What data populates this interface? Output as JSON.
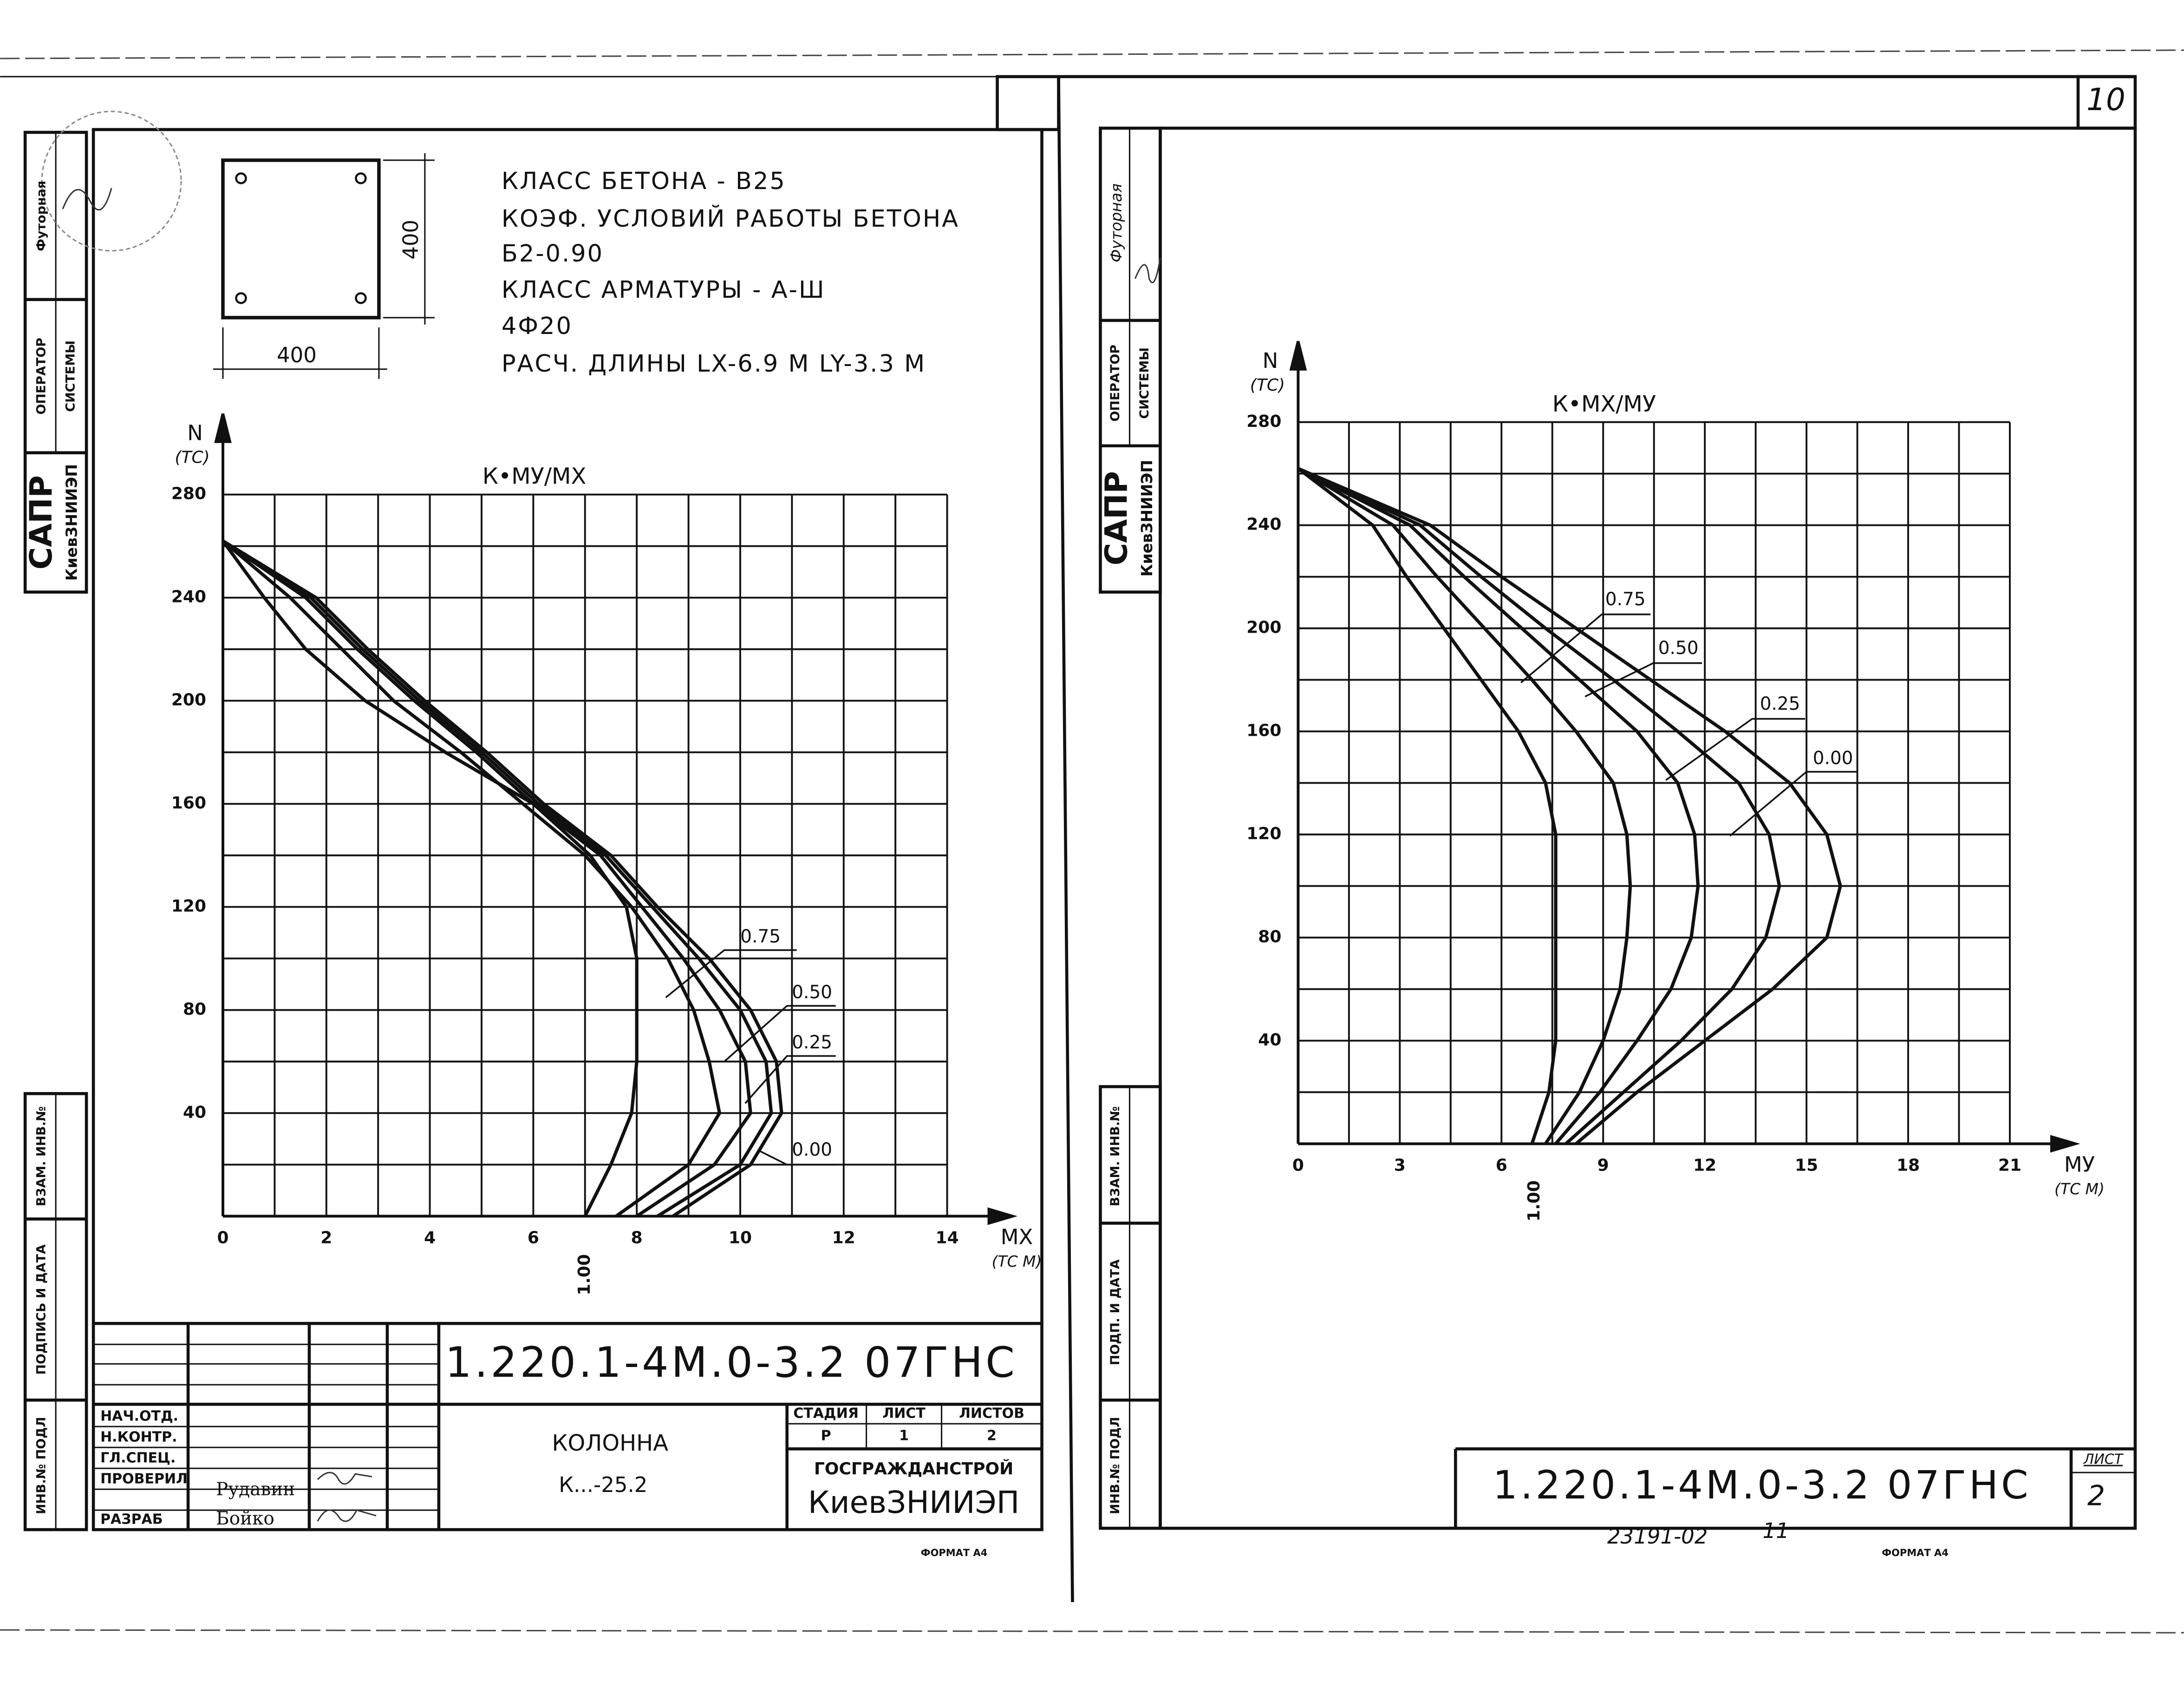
{
  "page_number": "10",
  "left_sheet": {
    "stamps": {
      "rewritten": "Футорная",
      "operator": "ОПЕРАТОР",
      "system": "СИСТЕМЫ",
      "sapr": "САПР",
      "org": "КиевЗНИИЭП",
      "replaced": "ВЗАМ. ИНВ.№",
      "signature": "ПОДПИСЬ И ДАТА",
      "original": "ИНВ.№ ПОДЛ"
    },
    "section": {
      "width": "400",
      "height": "400"
    },
    "specs": [
      "КЛАСС БЕТОНА - В25",
      "КОЭФ. УСЛОВИЙ РАБОТЫ БЕТОНА",
      "Б2-0.90",
      "КЛАСС АРМАТУРЫ - А-Ш",
      "4Ф20",
      "РАСЧ. ДЛИНЫ  LX-6.9 М  LY-3.3 М"
    ],
    "title_block": {
      "code": "1.220.1-4М.0-3.2 07ГНС",
      "roles": [
        "НАЧ.ОТД.",
        "Н.КОНТР.",
        "ГЛ.СПЕЦ.",
        "ПРОВЕРИЛ",
        "РАЗРАБ"
      ],
      "names": [
        "Рудавин",
        "Бойко"
      ],
      "item": "КОЛОННА",
      "mark": "К...-25.2",
      "stage_headers": [
        "СТАДИЯ",
        "ЛИСТ",
        "ЛИСТОВ"
      ],
      "stage_values": [
        "Р",
        "1",
        "2"
      ],
      "authority": "ГОСГРАЖДАНСТРОЙ",
      "org": "КиевЗНИИЭП"
    },
    "format": "ФОРМАТ А4"
  },
  "right_sheet": {
    "stamps": {
      "rewritten": "Футорная",
      "operator": "ОПЕРАТОР",
      "system": "СИСТЕМЫ",
      "sapr": "САПР",
      "org": "КиевЗНИИЭП",
      "replaced": "ВЗАМ. ИНВ.№",
      "signature": "ПОДП. И ДАТА",
      "original": "ИНВ.№ ПОДЛ"
    },
    "title_block": {
      "code": "1.220.1-4М.0-3.2 07ГНС",
      "sheet_header": "ЛИСТ",
      "sheet": "2"
    },
    "archive_number": "23191-02",
    "archive_sheet": "11",
    "format": "ФОРМАТ А4"
  },
  "chart_data": [
    {
      "type": "line",
      "title": "К•МУ/МХ",
      "xlabel": "МХ",
      "xunit": "(ТС М)",
      "ylabel": "N",
      "yunit": "(ТС)",
      "xlim": [
        0,
        14
      ],
      "xticks": [
        0,
        2,
        4,
        6,
        8,
        10,
        12,
        14
      ],
      "x_minor_ticks": [
        1,
        3,
        5,
        7,
        9,
        11,
        13
      ],
      "ylim": [
        0,
        280
      ],
      "yticks": [
        40,
        80,
        120,
        160,
        200,
        240,
        280
      ],
      "y_minor_ticks": [
        20,
        60,
        100,
        140,
        180,
        220,
        260
      ],
      "grid": true,
      "color": "#111111",
      "series": [
        {
          "name": "1.00",
          "x": [
            0,
            0.8,
            1.6,
            2.75,
            4.3,
            6.0,
            7.1,
            7.8,
            8.0,
            8.0,
            8.0,
            7.9,
            7.5,
            7.0
          ],
          "y": [
            262,
            240,
            220,
            200,
            180,
            160,
            140,
            120,
            100,
            80,
            60,
            40,
            20,
            0
          ]
        },
        {
          "name": "0.75",
          "x": [
            0,
            1.3,
            2.3,
            3.3,
            4.6,
            5.8,
            7.0,
            7.9,
            8.6,
            9.1,
            9.4,
            9.6,
            9.0,
            7.6
          ],
          "y": [
            262,
            240,
            220,
            200,
            180,
            160,
            140,
            120,
            100,
            80,
            60,
            40,
            20,
            0
          ]
        },
        {
          "name": "0.50",
          "x": [
            0,
            1.6,
            2.6,
            3.7,
            4.9,
            6.0,
            7.3,
            8.1,
            8.9,
            9.6,
            10.1,
            10.2,
            9.5,
            8.0
          ],
          "y": [
            262,
            240,
            220,
            200,
            180,
            160,
            140,
            120,
            100,
            80,
            60,
            40,
            20,
            0
          ]
        },
        {
          "name": "0.25",
          "x": [
            0,
            1.7,
            2.7,
            3.8,
            5.0,
            6.1,
            7.4,
            8.3,
            9.2,
            10.0,
            10.5,
            10.6,
            10.0,
            8.4
          ],
          "y": [
            262,
            240,
            220,
            200,
            180,
            160,
            140,
            120,
            100,
            80,
            60,
            40,
            20,
            0
          ]
        },
        {
          "name": "0.00",
          "x": [
            0,
            1.8,
            2.8,
            3.9,
            5.1,
            6.2,
            7.5,
            8.4,
            9.4,
            10.2,
            10.7,
            10.8,
            10.2,
            8.7
          ],
          "y": [
            262,
            240,
            220,
            200,
            180,
            160,
            140,
            120,
            100,
            80,
            60,
            40,
            20,
            0
          ]
        }
      ]
    },
    {
      "type": "line",
      "title": "К•МХ/МУ",
      "xlabel": "МУ",
      "xunit": "(ТС М)",
      "ylabel": "N",
      "yunit": "(ТС)",
      "xlim": [
        0,
        21
      ],
      "xticks": [
        0,
        3,
        6,
        9,
        12,
        15,
        18,
        21
      ],
      "x_minor_ticks": [
        1.5,
        4.5,
        7.5,
        10.5,
        13.5,
        16.5,
        19.5
      ],
      "ylim": [
        0,
        280
      ],
      "yticks": [
        40,
        80,
        120,
        160,
        200,
        240,
        280
      ],
      "y_minor_ticks": [
        20,
        60,
        100,
        140,
        180,
        220,
        260
      ],
      "grid": true,
      "color": "#111111",
      "series": [
        {
          "name": "1.00",
          "x": [
            0,
            2.2,
            3.2,
            4.3,
            5.4,
            6.5,
            7.3,
            7.6,
            7.6,
            7.6,
            7.6,
            7.6,
            7.4,
            6.9
          ],
          "y": [
            262,
            240,
            220,
            200,
            180,
            160,
            140,
            120,
            100,
            80,
            60,
            40,
            20,
            0
          ]
        },
        {
          "name": "0.75",
          "x": [
            0,
            2.8,
            4.1,
            5.5,
            6.9,
            8.2,
            9.3,
            9.7,
            9.8,
            9.7,
            9.5,
            9.0,
            8.3,
            7.3
          ],
          "y": [
            262,
            240,
            220,
            200,
            180,
            160,
            140,
            120,
            100,
            80,
            60,
            40,
            20,
            0
          ]
        },
        {
          "name": "0.50",
          "x": [
            0,
            3.3,
            4.9,
            6.6,
            8.3,
            10.0,
            11.2,
            11.7,
            11.8,
            11.6,
            11.0,
            10.0,
            8.9,
            7.6
          ],
          "y": [
            262,
            240,
            220,
            200,
            180,
            160,
            140,
            120,
            100,
            80,
            60,
            40,
            20,
            0
          ]
        },
        {
          "name": "0.25",
          "x": [
            0,
            3.6,
            5.4,
            7.3,
            9.3,
            11.2,
            13.0,
            13.9,
            14.2,
            13.8,
            12.8,
            11.3,
            9.6,
            7.9
          ],
          "y": [
            262,
            240,
            220,
            200,
            180,
            160,
            140,
            120,
            100,
            80,
            60,
            40,
            20,
            0
          ]
        },
        {
          "name": "0.00",
          "x": [
            0,
            3.9,
            6.0,
            8.2,
            10.4,
            12.6,
            14.5,
            15.6,
            16.0,
            15.6,
            14.0,
            12.0,
            10.0,
            8.2
          ],
          "y": [
            262,
            240,
            220,
            200,
            180,
            160,
            140,
            120,
            100,
            80,
            60,
            40,
            20,
            0
          ]
        }
      ]
    }
  ]
}
